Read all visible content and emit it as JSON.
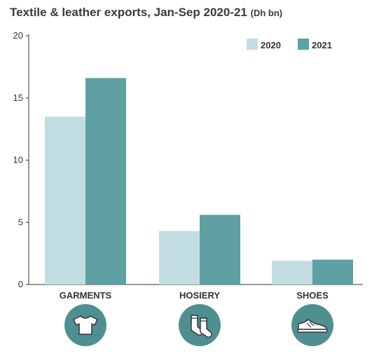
{
  "title": "Textile & leather exports, Jan-Sep 2020-21",
  "unit": "(Dh bn)",
  "colors": {
    "2020": "#c2dde2",
    "2021": "#5fa1a2",
    "icon_bg": "#4f8f92",
    "axis": "#333333"
  },
  "icons": [
    "tshirt-icon",
    "socks-icon",
    "shoe-icon"
  ],
  "chart_data": {
    "type": "bar",
    "title": "Textile & leather exports, Jan-Sep 2020-21 (Dh bn)",
    "categories": [
      "GARMENTS",
      "HOSIERY",
      "SHOES"
    ],
    "series": [
      {
        "name": "2020",
        "values": [
          13.5,
          4.3,
          1.9
        ]
      },
      {
        "name": "2021",
        "values": [
          16.6,
          5.6,
          2.0
        ]
      }
    ],
    "ylim": [
      0,
      20
    ],
    "yticks": [
      0,
      5,
      10,
      15,
      20
    ],
    "grid": false,
    "legend": "top-right"
  }
}
